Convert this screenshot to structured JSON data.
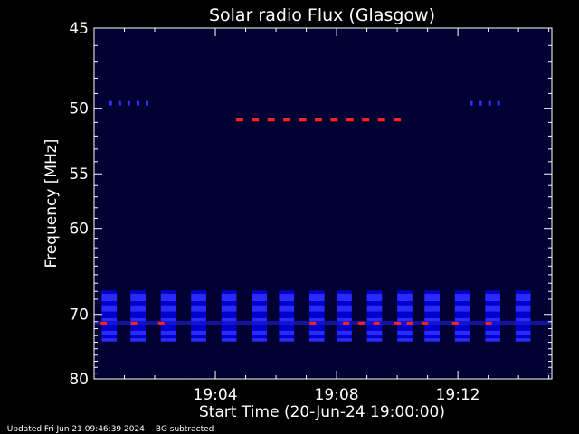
{
  "chart_data": {
    "type": "heatmap",
    "title": "Solar radio Flux (Glasgow)",
    "xlabel": "Start Time (20-Jun-24 19:00:00)",
    "ylabel": "Frequency [MHz]",
    "x_tick_labels": [
      "19:04",
      "19:08",
      "19:12"
    ],
    "x_ticks_minutes": [
      4,
      8,
      12
    ],
    "x_range_minutes": [
      0,
      15.1
    ],
    "y_tick_labels": [
      "45",
      "50",
      "55",
      "60",
      "70",
      "80"
    ],
    "y_ticks_mhz": [
      45,
      50,
      55,
      60,
      70,
      80
    ],
    "y_range_mhz": [
      45,
      80
    ],
    "y_scale": "reciprocal",
    "colors": {
      "background": "#000000",
      "plot_bg": "#000033",
      "low": "#0000cc",
      "mid": "#2a2aff",
      "high": "#ff2020"
    },
    "periodic_blocks": {
      "freq_band_mhz": [
        66.9,
        74.2
      ],
      "start_minutes": [
        0.25,
        1.2,
        2.2,
        3.2,
        4.2,
        5.2,
        6.1,
        7.1,
        8.0,
        9.0,
        10.0,
        10.9,
        11.9,
        12.9,
        13.9
      ],
      "width_minutes": 0.5
    },
    "red_dash_50mhz": {
      "freq_mhz": 50.8,
      "x_from_minutes": 4.8,
      "x_to_minutes": 10.0,
      "count": 11
    },
    "red_marks_71mhz": {
      "freq_mhz": 71.2,
      "x_minutes": [
        0.3,
        1.3,
        2.2,
        7.2,
        8.3,
        8.8,
        9.3,
        10.0,
        10.4,
        10.9,
        11.9,
        13.0
      ]
    },
    "faint_line_49mhz": {
      "freq_mhz": 49.5,
      "x_minutes": [
        0.5,
        0.8,
        1.1,
        1.4,
        1.7,
        12.4,
        12.7,
        13.0,
        13.3
      ]
    }
  },
  "footer": {
    "updated": "Updated Fri Jun 21 09:46:39 2024",
    "bg": "BG subtracted"
  }
}
